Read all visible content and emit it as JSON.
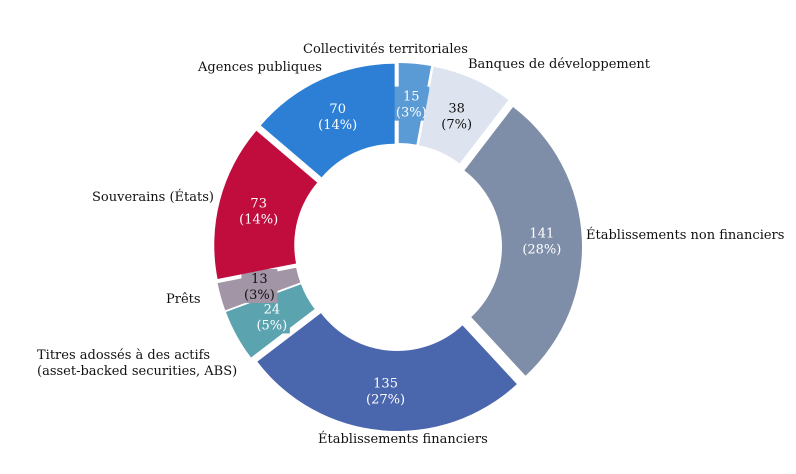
{
  "chart_data": {
    "type": "donut",
    "categories": [
      "Collectivités territoriales",
      "Banques de développement",
      "Établissements non financiers",
      "Établissements financiers",
      "Titres adossés à des actifs (asset-backed securities, ABS)",
      "Prêts",
      "Souverains (États)",
      "Agences publiques"
    ],
    "values": [
      15,
      38,
      141,
      135,
      24,
      13,
      73,
      70
    ],
    "percent_labels": [
      "(3%)",
      "(7%)",
      "(28%)",
      "(27%)",
      "(5%)",
      "(3%)",
      "(14%)",
      "(14%)"
    ],
    "colors": [
      "#5b9bd5",
      "#dee4ef",
      "#7f8ea8",
      "#4a66ac",
      "#5aa3af",
      "#a295a6",
      "#c00d3d",
      "#2c7fd5"
    ],
    "label_colors": [
      "#ffffff",
      "#111111",
      "#ffffff",
      "#ffffff",
      "#ffffff",
      "#111111",
      "#ffffff",
      "#ffffff"
    ],
    "start": "top",
    "direction": "clockwise",
    "exploded": true
  }
}
